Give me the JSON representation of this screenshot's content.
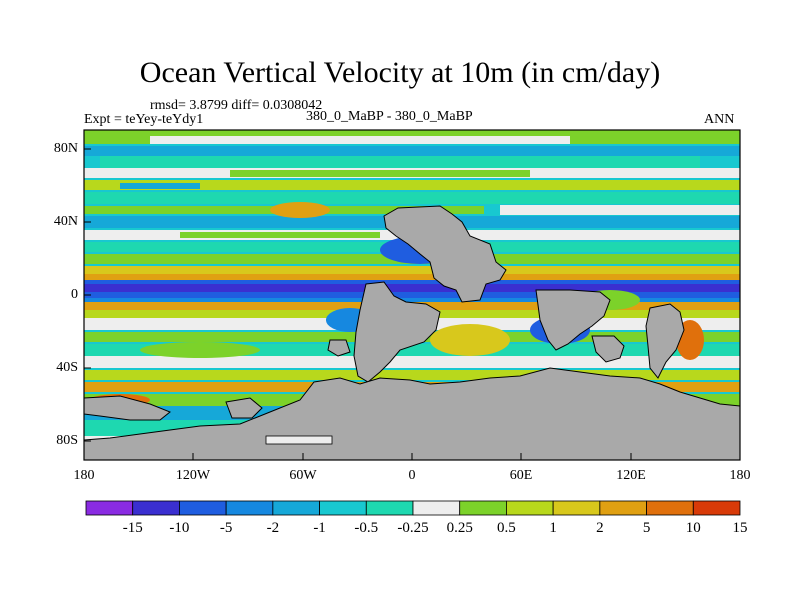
{
  "title": "Ocean Vertical Velocity at 10m (in cm/day)",
  "stats": "rmsd= 3.8799 diff= 0.0308042",
  "experiment": "Expt = teYey-teYdy1",
  "comparison": "380_0_MaBP - 380_0_MaBP",
  "season": "ANN",
  "map": {
    "lon_labels": [
      "180",
      "120W",
      "60W",
      "0",
      "60E",
      "120E",
      "180"
    ],
    "lat_labels": [
      "80N",
      "40N",
      "0",
      "40S",
      "80S"
    ],
    "land_color": "#a9a9a9"
  },
  "colorbar": {
    "labels": [
      "-15",
      "-10",
      "-5",
      "-2",
      "-1",
      "-0.5",
      "-0.25",
      "0.25",
      "0.5",
      "1",
      "2",
      "5",
      "10",
      "15"
    ],
    "colors": [
      "#8a2be2",
      "#3a2fd0",
      "#1f5de0",
      "#1688e0",
      "#16a8d8",
      "#18c8d0",
      "#1ed8b0",
      "#eeeeee",
      "#7cd22a",
      "#b8d81c",
      "#d8c81c",
      "#e0a012",
      "#e0700c",
      "#d83a08"
    ]
  }
}
